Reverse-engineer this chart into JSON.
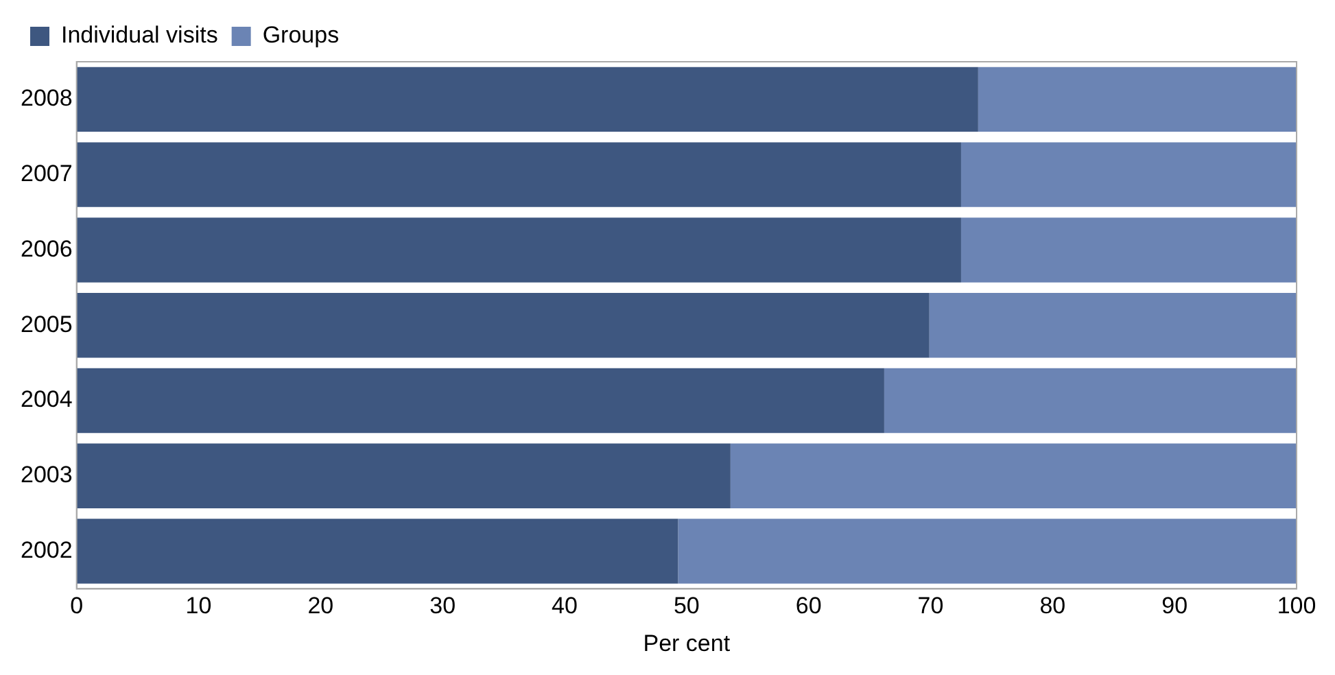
{
  "chart_data": {
    "type": "bar",
    "orientation": "horizontal",
    "stacked": true,
    "xlabel": "Per cent",
    "categories": [
      "2008",
      "2007",
      "2006",
      "2005",
      "2004",
      "2003",
      "2002"
    ],
    "series": [
      {
        "name": "Individual visits",
        "color": "#3e5780",
        "values": [
          73.9,
          72.5,
          72.5,
          69.9,
          66.2,
          53.6,
          49.3
        ]
      },
      {
        "name": "Groups",
        "color": "#6b84b4",
        "values": [
          26.1,
          27.5,
          27.5,
          30.1,
          33.8,
          46.4,
          50.7
        ]
      }
    ],
    "xlim": [
      0,
      100
    ],
    "xticks": [
      0,
      10,
      20,
      30,
      40,
      50,
      60,
      70,
      80,
      90,
      100
    ],
    "grid": false,
    "legend": "top left"
  }
}
